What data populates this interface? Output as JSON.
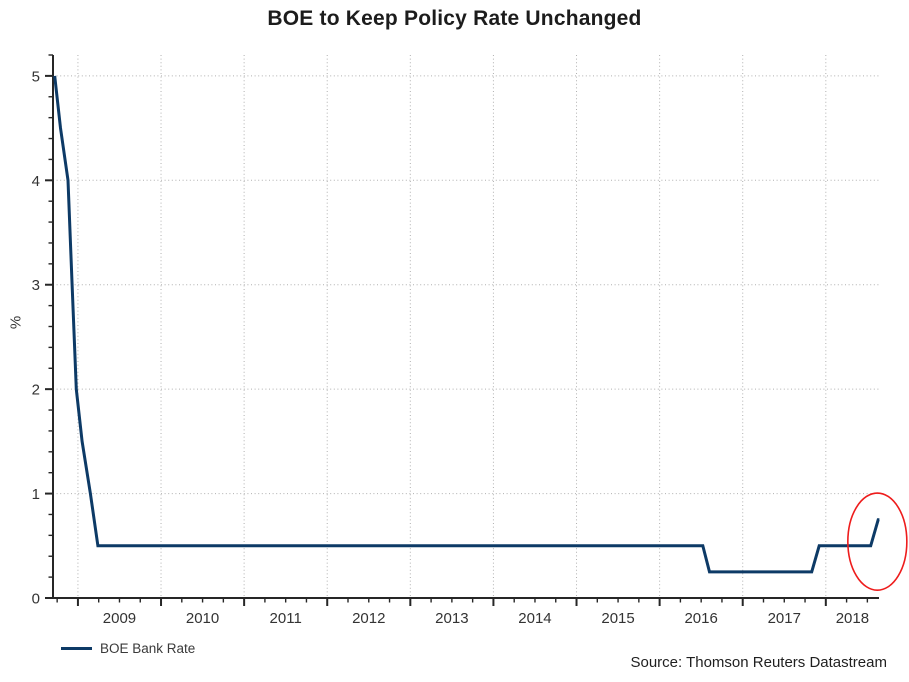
{
  "chart_data": {
    "type": "line",
    "title": "BOE to Keep Policy Rate Unchanged",
    "xlabel": "",
    "ylabel": "%",
    "xlim": [
      2008.7,
      2018.64
    ],
    "ylim": [
      0,
      5.2
    ],
    "grid": "dotted",
    "grid_color": "#b0b0b0",
    "axis_color": "#262626",
    "tick_label_color": "#333333",
    "y_ticks": [
      0,
      1,
      2,
      3,
      4,
      5
    ],
    "y_minor_step": 0.2,
    "x_gridline_years": [
      2009,
      2010,
      2011,
      2012,
      2013,
      2014,
      2015,
      2016,
      2017,
      2018
    ],
    "x_tick_labels": [
      "2009",
      "2010",
      "2011",
      "2012",
      "2013",
      "2014",
      "2015",
      "2016",
      "2017",
      "2018"
    ],
    "x_minor_step": 0.25,
    "legend_position": "bottom-left",
    "series": [
      {
        "name": "BOE Bank Rate",
        "color": "#0d3a66",
        "points": [
          [
            2008.72,
            5.0
          ],
          [
            2008.79,
            4.5
          ],
          [
            2008.88,
            4.0
          ],
          [
            2008.93,
            3.0
          ],
          [
            2008.98,
            2.0
          ],
          [
            2009.05,
            1.5
          ],
          [
            2009.15,
            1.0
          ],
          [
            2009.24,
            0.5
          ],
          [
            2016.52,
            0.5
          ],
          [
            2016.6,
            0.25
          ],
          [
            2017.83,
            0.25
          ],
          [
            2017.92,
            0.5
          ],
          [
            2018.54,
            0.5
          ],
          [
            2018.63,
            0.75
          ],
          [
            2018.645,
            0.75
          ]
        ]
      }
    ],
    "annotation": {
      "shape": "ellipse",
      "color": "#ee1c1c",
      "center_x": 2018.62,
      "center_y": 0.54,
      "rx_years": 0.355,
      "ry_pct": 0.465,
      "meaning": "highlights final rate rise to 0.75%"
    }
  },
  "footer": {
    "source": "Source: Thomson Reuters Datastream"
  }
}
